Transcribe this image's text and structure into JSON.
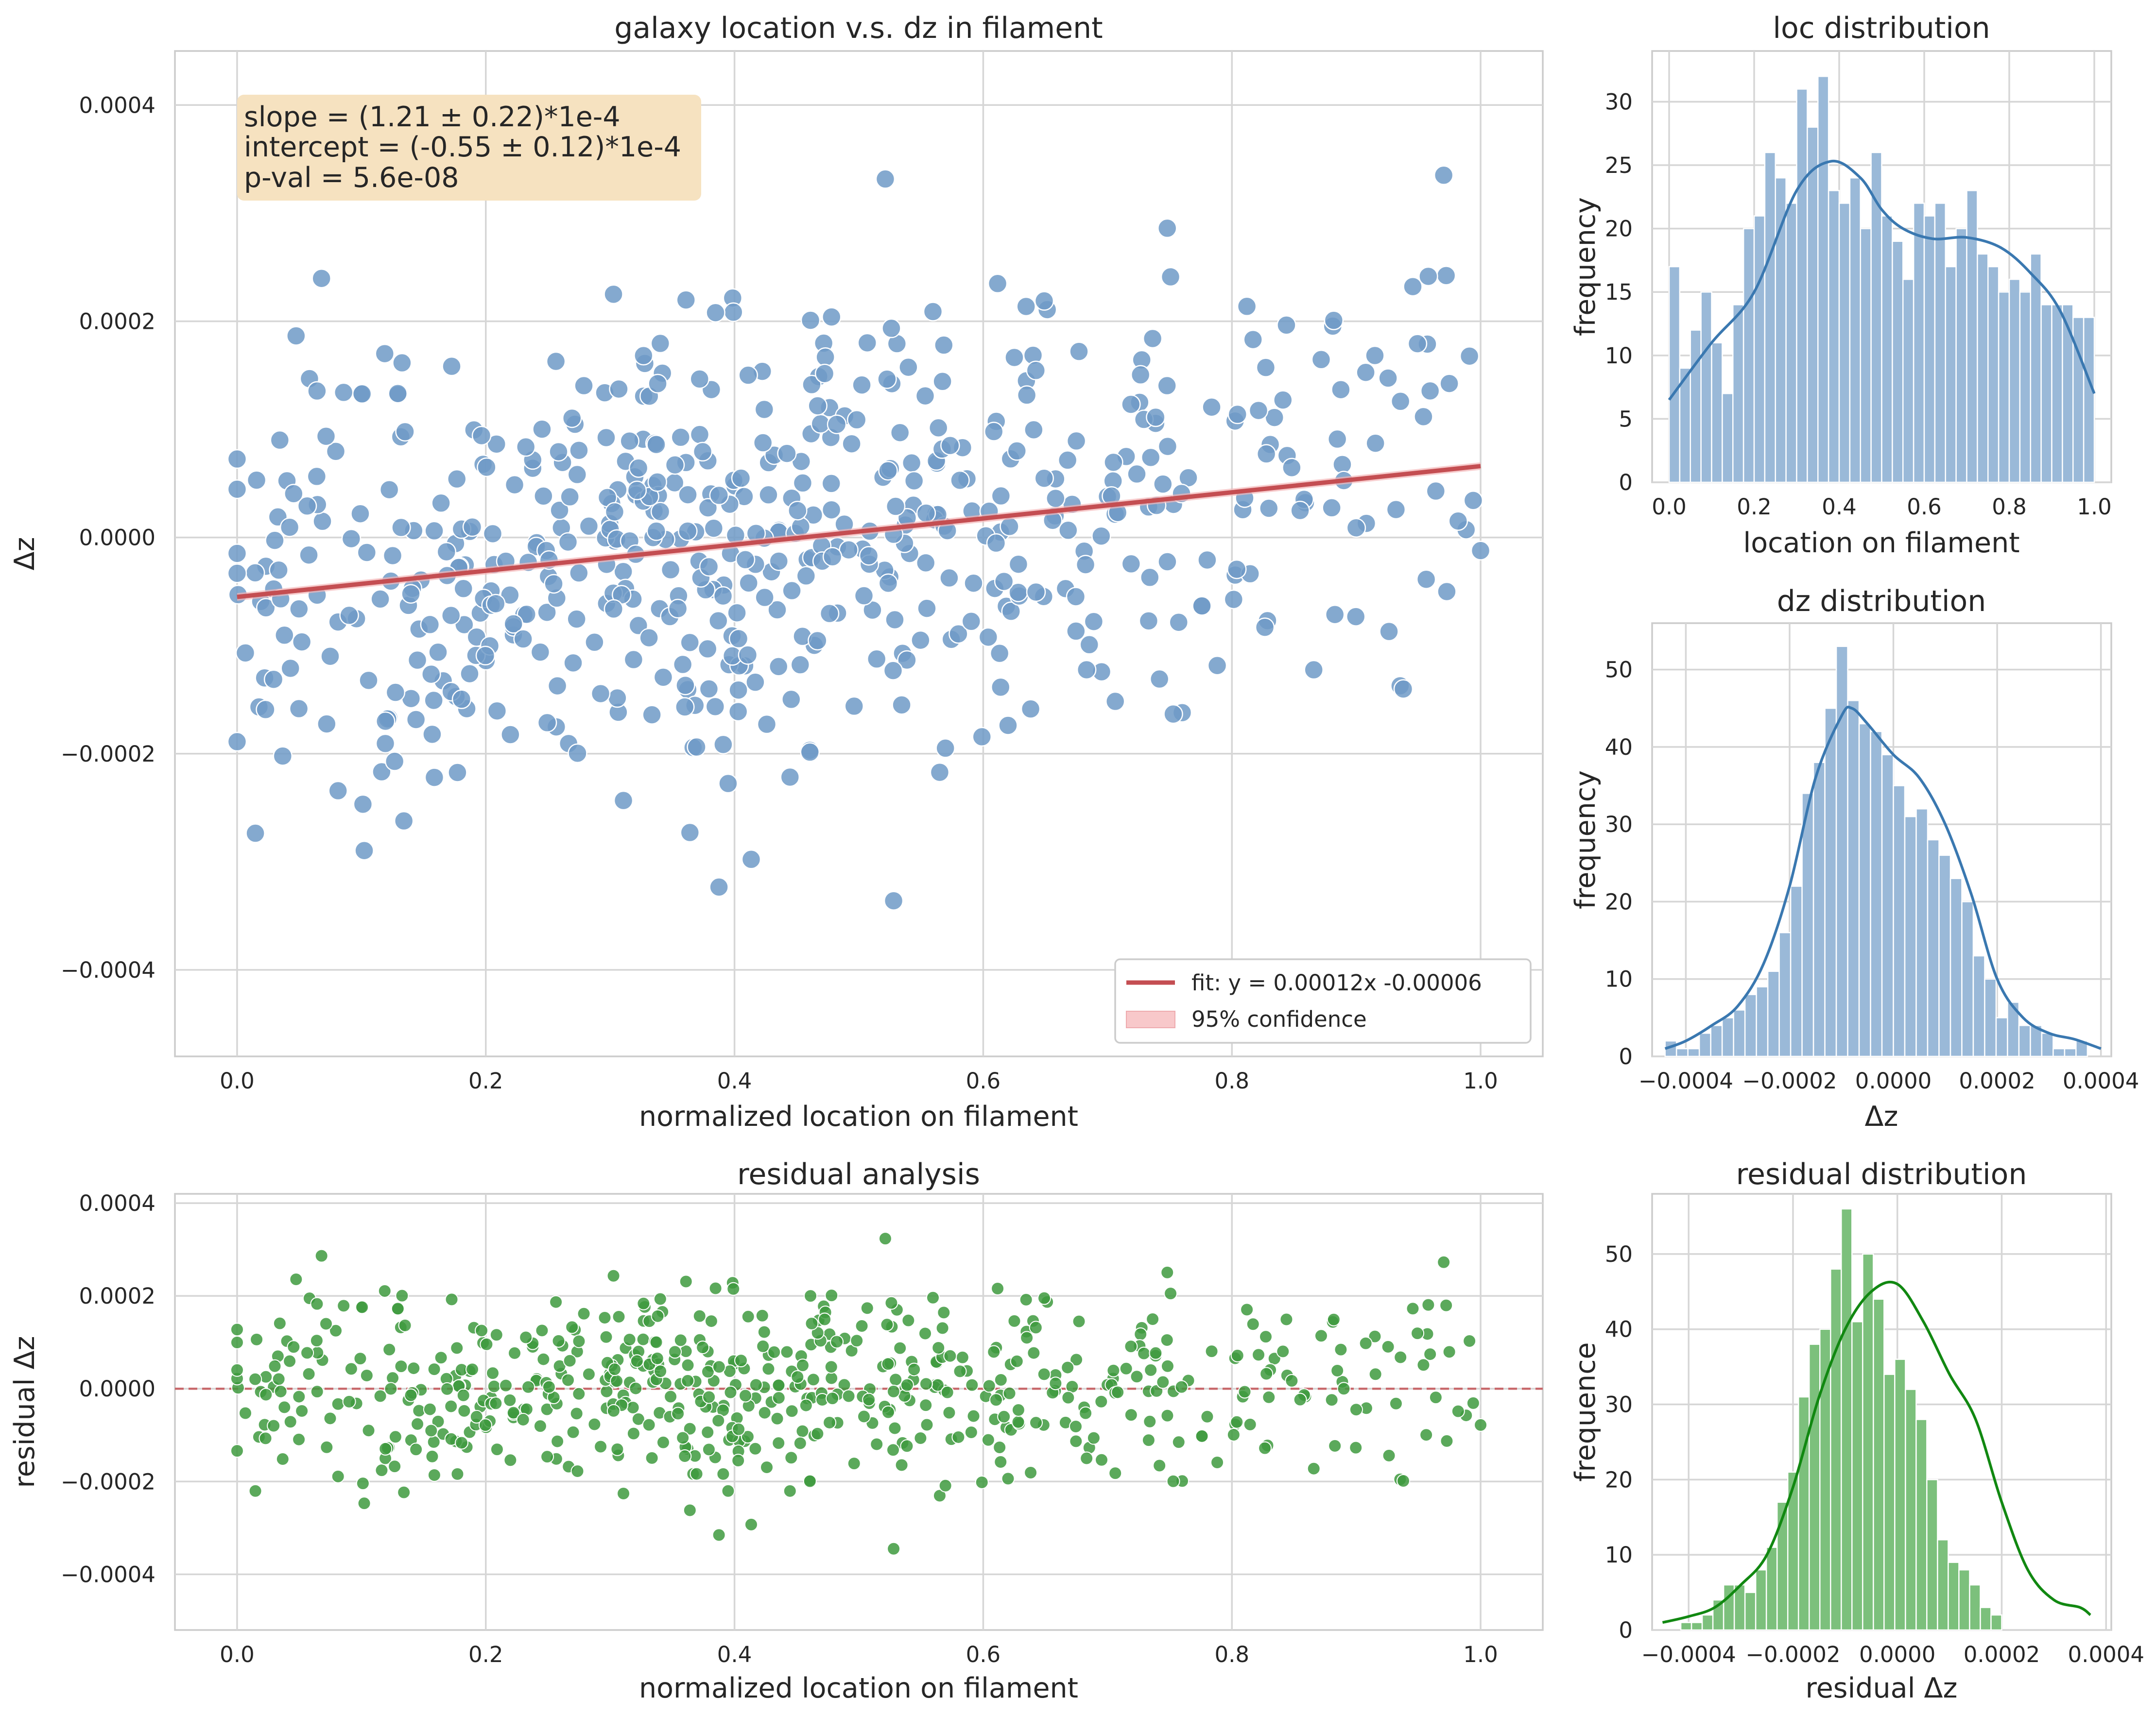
{
  "colors": {
    "scatter_blue": "#6f9ac7",
    "hist_blue": "#9ab9d8",
    "kde_blue": "#3a78b0",
    "fit_red": "#c44e52",
    "band_red": "#f4b6b8",
    "scatter_green": "#3e9a3e",
    "hist_green": "#7cc07c",
    "kde_green": "#118811",
    "stats_box": "#f6e2c0"
  },
  "main": {
    "title": "galaxy location v.s. dz in filament",
    "xlabel": "normalized location on filament",
    "ylabel": "Δz",
    "stats": {
      "slope": "slope = (1.21 ± 0.22)*1e-4",
      "intercept": "intercept = (-0.55 ± 0.12)*1e-4",
      "pval": "p-val = 5.6e-08"
    },
    "legend": {
      "fit": "fit: y = 0.00012x -0.00006",
      "band": "95% confidence"
    }
  },
  "residual": {
    "title": "residual analysis",
    "xlabel": "normalized location on filament",
    "ylabel": "residual Δz"
  },
  "loc_hist": {
    "title": "loc distribution",
    "xlabel": "location on filament",
    "ylabel": "frequency"
  },
  "dz_hist": {
    "title": "dz distribution",
    "xlabel": "Δz",
    "ylabel": "frequency"
  },
  "res_hist": {
    "title": "residual distribution",
    "xlabel": "residual Δz",
    "ylabel": "frequence"
  },
  "chart_data": [
    {
      "id": "main",
      "type": "scatter",
      "title": "galaxy location v.s. dz in filament",
      "xlabel": "normalized location on filament",
      "ylabel": "Δz",
      "xlim": [
        -0.05,
        1.05
      ],
      "ylim": [
        -0.00048,
        0.00045
      ],
      "xticks": [
        0.0,
        0.2,
        0.4,
        0.6,
        0.8,
        1.0
      ],
      "xtick_labels": [
        "0.0",
        "0.2",
        "0.4",
        "0.6",
        "0.8",
        "1.0"
      ],
      "yticks": [
        -0.0004,
        -0.0002,
        0.0,
        0.0002,
        0.0004
      ],
      "ytick_labels": [
        "−0.0004",
        "−0.0002",
        "0.0000",
        "0.0002",
        "0.0004"
      ],
      "fit": {
        "slope": 0.000121,
        "intercept": -5.5e-05,
        "band": 3.5e-06
      },
      "legend_position": "lower-right",
      "grid": true,
      "n_points": 600,
      "seed": 7
    },
    {
      "id": "residual",
      "type": "scatter",
      "title": "residual analysis",
      "xlabel": "normalized location on filament",
      "ylabel": "residual Δz",
      "xlim": [
        -0.05,
        1.05
      ],
      "ylim": [
        -0.00052,
        0.00042
      ],
      "xticks": [
        0.0,
        0.2,
        0.4,
        0.6,
        0.8,
        1.0
      ],
      "xtick_labels": [
        "0.0",
        "0.2",
        "0.4",
        "0.6",
        "0.8",
        "1.0"
      ],
      "yticks": [
        -0.0004,
        -0.0002,
        0.0,
        0.0002,
        0.0004
      ],
      "ytick_labels": [
        "−0.0004",
        "−0.0002",
        "0.0000",
        "0.0002",
        "0.0004"
      ],
      "zero_line": 0.0,
      "grid": true
    },
    {
      "id": "loc_hist",
      "type": "bar",
      "title": "loc distribution",
      "xlabel": "location on filament",
      "ylabel": "frequency",
      "bin_start": 0.0,
      "bin_width": 0.025,
      "values": [
        17,
        9,
        12,
        15,
        11,
        7,
        14,
        20,
        21,
        26,
        24,
        22,
        31,
        28,
        32,
        23,
        22,
        24,
        20,
        26,
        21,
        19,
        16,
        22,
        21,
        22,
        17,
        20,
        23,
        18,
        17,
        15,
        16,
        15,
        18,
        14,
        14,
        14,
        13,
        13
      ],
      "xlim": [
        -0.04,
        1.04
      ],
      "ylim": [
        0,
        34
      ],
      "xticks": [
        0.0,
        0.2,
        0.4,
        0.6,
        0.8,
        1.0
      ],
      "xtick_labels": [
        "0.0",
        "0.2",
        "0.4",
        "0.6",
        "0.8",
        "1.0"
      ],
      "yticks": [
        0,
        5,
        10,
        15,
        20,
        25,
        30
      ],
      "ytick_labels": [
        "0",
        "5",
        "10",
        "15",
        "20",
        "25",
        "30"
      ],
      "kde": [
        [
          0.0,
          6.5
        ],
        [
          0.1,
          11
        ],
        [
          0.2,
          15
        ],
        [
          0.3,
          23
        ],
        [
          0.38,
          25.3
        ],
        [
          0.45,
          24
        ],
        [
          0.5,
          21.5
        ],
        [
          0.55,
          20
        ],
        [
          0.62,
          19.2
        ],
        [
          0.7,
          19.3
        ],
        [
          0.78,
          18.5
        ],
        [
          0.85,
          16.5
        ],
        [
          0.92,
          13.5
        ],
        [
          1.0,
          7
        ]
      ],
      "grid": true
    },
    {
      "id": "dz_hist",
      "type": "bar",
      "title": "dz distribution",
      "xlabel": "Δz",
      "ylabel": "frequency",
      "bin_start": -0.00044,
      "bin_width": 2.2e-05,
      "values": [
        2,
        1,
        1,
        3,
        4,
        5,
        6,
        8,
        9,
        11,
        16,
        22,
        34,
        38,
        45,
        53,
        46,
        43,
        42,
        39,
        35,
        31,
        32,
        28,
        26,
        23,
        20,
        13,
        10,
        5,
        7,
        4,
        4,
        3,
        1,
        1,
        2
      ],
      "xlim": [
        -0.000465,
        0.00042
      ],
      "ylim": [
        0,
        56
      ],
      "xticks": [
        -0.0004,
        -0.0002,
        0.0,
        0.0002,
        0.0004
      ],
      "xtick_labels": [
        "−0.0004",
        "−0.0002",
        "0.0000",
        "0.0002",
        "0.0004"
      ],
      "yticks": [
        0,
        10,
        20,
        30,
        40,
        50
      ],
      "ytick_labels": [
        "0",
        "10",
        "20",
        "30",
        "40",
        "50"
      ],
      "kde": [
        [
          -0.00044,
          1
        ],
        [
          -0.0004,
          2
        ],
        [
          -0.00035,
          4
        ],
        [
          -0.0003,
          6.5
        ],
        [
          -0.00025,
          12
        ],
        [
          -0.0002,
          22
        ],
        [
          -0.00015,
          36
        ],
        [
          -0.0001,
          44
        ],
        [
          -8e-05,
          45
        ],
        [
          -5e-05,
          43
        ],
        [
          0.0,
          39
        ],
        [
          5e-05,
          36
        ],
        [
          0.0001,
          30
        ],
        [
          0.00015,
          21
        ],
        [
          0.0002,
          10
        ],
        [
          0.00025,
          5
        ],
        [
          0.0003,
          3
        ],
        [
          0.00035,
          2.2
        ],
        [
          0.0004,
          1
        ]
      ],
      "grid": true
    },
    {
      "id": "res_hist",
      "type": "bar",
      "title": "residual distribution",
      "xlabel": "residual Δz",
      "ylabel": "frequence",
      "bin_start": -0.000415,
      "bin_width": 2.05e-05,
      "values": [
        1,
        1,
        2,
        4,
        6,
        6,
        5,
        8,
        11,
        17,
        21,
        31,
        38,
        40,
        48,
        56,
        41,
        50,
        44,
        34,
        36,
        32,
        28,
        20,
        12,
        9,
        8,
        6,
        3,
        2
      ],
      "xlim": [
        -0.00047,
        0.00041
      ],
      "ylim": [
        0,
        58
      ],
      "xticks": [
        -0.0004,
        -0.0002,
        0.0,
        0.0002,
        0.0004
      ],
      "xtick_labels": [
        "−0.0004",
        "−0.0002",
        "0.0000",
        "0.0002",
        "0.0004"
      ],
      "yticks": [
        0,
        10,
        20,
        30,
        40,
        50
      ],
      "ytick_labels": [
        "0",
        "10",
        "20",
        "30",
        "40",
        "50"
      ],
      "kde": [
        [
          -0.00045,
          1
        ],
        [
          -0.0004,
          1.8
        ],
        [
          -0.00035,
          3
        ],
        [
          -0.0003,
          6
        ],
        [
          -0.00025,
          10
        ],
        [
          -0.0002,
          19
        ],
        [
          -0.00015,
          31
        ],
        [
          -0.0001,
          40
        ],
        [
          -5e-05,
          45
        ],
        [
          0.0,
          46
        ],
        [
          5e-05,
          41
        ],
        [
          0.0001,
          34
        ],
        [
          0.00015,
          28
        ],
        [
          0.0002,
          17
        ],
        [
          0.00025,
          8
        ],
        [
          0.0003,
          4
        ],
        [
          0.00035,
          3
        ],
        [
          0.00037,
          2
        ]
      ],
      "grid": true
    }
  ]
}
